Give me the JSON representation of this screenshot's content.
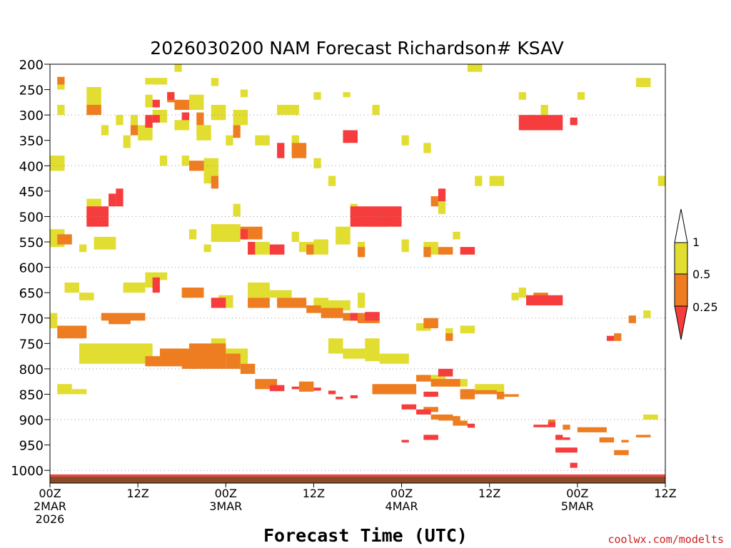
{
  "chart_data": {
    "type": "heatmap",
    "title": "2026030200 NAM Forecast Richardson# KSAV",
    "xlabel": "Forecast Time (UTC)",
    "ylabel": "",
    "x_unit": "forecast hour",
    "xlim": [
      0,
      84
    ],
    "ylim": [
      1025,
      200
    ],
    "y_ticks": [
      200,
      250,
      300,
      350,
      400,
      450,
      500,
      550,
      600,
      650,
      700,
      750,
      800,
      850,
      900,
      950,
      1000
    ],
    "x_ticks": [
      {
        "hour": 0,
        "lines": [
          "00Z",
          "2MAR",
          "2026"
        ]
      },
      {
        "hour": 12,
        "lines": [
          "12Z"
        ]
      },
      {
        "hour": 24,
        "lines": [
          "00Z",
          "3MAR"
        ]
      },
      {
        "hour": 36,
        "lines": [
          "12Z"
        ]
      },
      {
        "hour": 48,
        "lines": [
          "00Z",
          "4MAR"
        ]
      },
      {
        "hour": 60,
        "lines": [
          "12Z"
        ]
      },
      {
        "hour": 72,
        "lines": [
          "00Z",
          "5MAR"
        ]
      },
      {
        "hour": 84,
        "lines": [
          "12Z"
        ]
      }
    ],
    "grid_levels": [
      300,
      400,
      500,
      600,
      700,
      800,
      900,
      1000
    ],
    "legend": {
      "placement": "right",
      "labels": [
        "1",
        "0.5",
        "0.25"
      ],
      "bins": [
        {
          "range": "0.5-1",
          "color": "#e1dd31"
        },
        {
          "range": "0.25-0.5",
          "color": "#ee7d22"
        },
        {
          "range": "<0.25",
          "color": "#f63c3c"
        }
      ]
    },
    "surface_color": "#8b4a28",
    "bins": [
      {
        "bin": "0.5-1",
        "cells": [
          [
            17,
            18,
            200,
            215
          ],
          [
            1,
            2,
            225,
            250
          ],
          [
            5,
            7,
            245,
            300
          ],
          [
            13,
            16,
            227,
            240
          ],
          [
            22,
            23,
            227,
            243
          ],
          [
            26,
            27,
            250,
            265
          ],
          [
            36,
            37,
            255,
            270
          ],
          [
            40,
            41,
            255,
            265
          ],
          [
            57,
            59,
            200,
            215
          ],
          [
            80,
            82,
            227,
            245
          ],
          [
            64,
            65,
            255,
            270
          ],
          [
            72,
            73,
            255,
            270
          ],
          [
            1,
            2,
            280,
            300
          ],
          [
            9,
            10,
            300,
            320
          ],
          [
            11,
            12,
            300,
            320
          ],
          [
            13,
            14,
            260,
            285
          ],
          [
            14,
            16,
            290,
            315
          ],
          [
            19,
            21,
            260,
            290
          ],
          [
            22,
            24,
            280,
            310
          ],
          [
            25,
            27,
            290,
            320
          ],
          [
            31,
            34,
            280,
            300
          ],
          [
            44,
            45,
            280,
            300
          ],
          [
            67,
            68,
            280,
            300
          ],
          [
            65,
            66,
            300,
            320
          ],
          [
            7,
            8,
            320,
            340
          ],
          [
            10,
            11,
            340,
            365
          ],
          [
            12,
            14,
            320,
            350
          ],
          [
            17,
            19,
            310,
            330
          ],
          [
            20,
            22,
            320,
            350
          ],
          [
            24,
            25,
            340,
            360
          ],
          [
            28,
            30,
            340,
            360
          ],
          [
            33,
            34,
            340,
            360
          ],
          [
            48,
            49,
            340,
            360
          ],
          [
            51,
            52,
            355,
            375
          ],
          [
            0,
            2,
            380,
            410
          ],
          [
            15,
            16,
            380,
            400
          ],
          [
            18,
            19,
            380,
            400
          ],
          [
            21,
            23,
            385,
            435
          ],
          [
            36,
            37,
            385,
            405
          ],
          [
            38,
            39,
            420,
            440
          ],
          [
            60,
            62,
            420,
            440
          ],
          [
            58,
            59,
            420,
            440
          ],
          [
            83,
            84,
            420,
            440
          ],
          [
            5,
            7,
            465,
            500
          ],
          [
            25,
            26,
            475,
            500
          ],
          [
            41,
            42,
            475,
            500
          ],
          [
            53,
            54,
            470,
            495
          ],
          [
            0,
            2,
            525,
            560
          ],
          [
            4,
            5,
            555,
            570
          ],
          [
            6,
            9,
            540,
            565
          ],
          [
            19,
            20,
            525,
            545
          ],
          [
            22,
            26,
            515,
            550
          ],
          [
            21,
            22,
            555,
            570
          ],
          [
            27,
            30,
            550,
            575
          ],
          [
            33,
            34,
            530,
            550
          ],
          [
            34,
            36,
            550,
            570
          ],
          [
            36,
            38,
            545,
            575
          ],
          [
            39,
            41,
            520,
            555
          ],
          [
            42,
            43,
            550,
            575
          ],
          [
            48,
            49,
            545,
            570
          ],
          [
            55,
            56,
            530,
            545
          ],
          [
            51,
            53,
            550,
            575
          ],
          [
            2,
            4,
            630,
            650
          ],
          [
            4,
            6,
            650,
            665
          ],
          [
            10,
            13,
            630,
            650
          ],
          [
            13,
            15,
            610,
            640
          ],
          [
            15,
            16,
            610,
            625
          ],
          [
            18,
            20,
            640,
            660
          ],
          [
            23,
            25,
            655,
            680
          ],
          [
            27,
            30,
            630,
            660
          ],
          [
            30,
            33,
            645,
            660
          ],
          [
            36,
            38,
            660,
            690
          ],
          [
            38,
            41,
            665,
            685
          ],
          [
            42,
            43,
            650,
            680
          ],
          [
            63,
            64,
            650,
            665
          ],
          [
            64,
            65,
            640,
            660
          ],
          [
            0,
            1,
            690,
            720
          ],
          [
            4,
            8,
            750,
            790
          ],
          [
            8,
            14,
            750,
            790
          ],
          [
            17,
            18,
            760,
            790
          ],
          [
            22,
            24,
            740,
            790
          ],
          [
            24,
            27,
            760,
            790
          ],
          [
            38,
            40,
            740,
            770
          ],
          [
            40,
            43,
            760,
            780
          ],
          [
            43,
            45,
            740,
            785
          ],
          [
            45,
            49,
            770,
            790
          ],
          [
            50,
            52,
            710,
            725
          ],
          [
            54,
            55,
            720,
            735
          ],
          [
            56,
            58,
            715,
            730
          ],
          [
            81,
            82,
            685,
            700
          ],
          [
            1,
            3,
            830,
            850
          ],
          [
            3,
            5,
            840,
            850
          ],
          [
            50,
            54,
            812,
            825
          ],
          [
            54,
            57,
            820,
            835
          ],
          [
            58,
            62,
            830,
            845
          ],
          [
            81,
            83,
            890,
            900
          ]
        ]
      },
      {
        "bin": "0.25-0.5",
        "cells": [
          [
            1,
            2,
            225,
            240
          ],
          [
            5,
            7,
            280,
            300
          ],
          [
            16,
            17,
            255,
            275
          ],
          [
            18,
            19,
            295,
            310
          ],
          [
            17,
            19,
            270,
            290
          ],
          [
            20,
            21,
            295,
            320
          ],
          [
            25,
            26,
            320,
            345
          ],
          [
            33,
            35,
            355,
            385
          ],
          [
            11,
            12,
            320,
            340
          ],
          [
            19,
            21,
            390,
            410
          ],
          [
            22,
            23,
            420,
            445
          ],
          [
            52,
            53,
            460,
            480
          ],
          [
            1,
            3,
            535,
            555
          ],
          [
            26,
            29,
            520,
            545
          ],
          [
            43,
            46,
            490,
            520
          ],
          [
            35,
            36,
            555,
            575
          ],
          [
            42,
            43,
            560,
            580
          ],
          [
            51,
            52,
            560,
            580
          ],
          [
            53,
            55,
            560,
            575
          ],
          [
            18,
            21,
            640,
            660
          ],
          [
            27,
            30,
            660,
            680
          ],
          [
            31,
            35,
            660,
            680
          ],
          [
            35,
            37,
            675,
            690
          ],
          [
            37,
            40,
            680,
            700
          ],
          [
            40,
            42,
            690,
            705
          ],
          [
            42,
            45,
            690,
            710
          ],
          [
            1,
            5,
            715,
            740
          ],
          [
            7,
            13,
            690,
            705
          ],
          [
            8,
            11,
            700,
            712
          ],
          [
            13,
            18,
            775,
            795
          ],
          [
            15,
            19,
            760,
            790
          ],
          [
            19,
            24,
            750,
            800
          ],
          [
            24,
            26,
            770,
            800
          ],
          [
            26,
            28,
            790,
            810
          ],
          [
            28,
            31,
            820,
            840
          ],
          [
            34,
            36,
            825,
            845
          ],
          [
            44,
            50,
            830,
            850
          ],
          [
            50,
            52,
            812,
            825
          ],
          [
            52,
            56,
            820,
            835
          ],
          [
            56,
            58,
            840,
            860
          ],
          [
            58,
            61,
            842,
            850
          ],
          [
            61,
            62,
            845,
            860
          ],
          [
            62,
            64,
            850,
            855
          ],
          [
            51,
            53,
            875,
            885
          ],
          [
            52,
            55,
            890,
            900
          ],
          [
            53,
            56,
            893,
            902
          ],
          [
            55,
            57,
            902,
            912
          ],
          [
            18,
            20,
            780,
            800
          ],
          [
            51,
            53,
            700,
            720
          ],
          [
            54,
            55,
            730,
            745
          ],
          [
            66,
            68,
            650,
            670
          ],
          [
            77,
            78,
            730,
            745
          ],
          [
            79,
            80,
            695,
            710
          ],
          [
            80,
            82,
            930,
            935
          ],
          [
            77,
            79,
            960,
            970
          ],
          [
            78,
            79,
            940,
            945
          ],
          [
            75,
            77,
            935,
            945
          ],
          [
            72,
            76,
            915,
            925
          ],
          [
            70,
            71,
            910,
            920
          ],
          [
            68,
            69,
            900,
            910
          ]
        ]
      },
      {
        "bin": "<0.25",
        "cells": [
          [
            13,
            14,
            300,
            325
          ],
          [
            14,
            15,
            300,
            315
          ],
          [
            14,
            15,
            270,
            285
          ],
          [
            16,
            17,
            255,
            270
          ],
          [
            18,
            19,
            295,
            310
          ],
          [
            40,
            42,
            330,
            355
          ],
          [
            31,
            32,
            355,
            385
          ],
          [
            64,
            70,
            300,
            330
          ],
          [
            71,
            72,
            305,
            320
          ],
          [
            53,
            54,
            445,
            470
          ],
          [
            5,
            8,
            480,
            520
          ],
          [
            8,
            9,
            455,
            480
          ],
          [
            9,
            10,
            445,
            480
          ],
          [
            41,
            48,
            480,
            520
          ],
          [
            26,
            27,
            525,
            545
          ],
          [
            27,
            28,
            550,
            575
          ],
          [
            30,
            32,
            555,
            575
          ],
          [
            56,
            58,
            560,
            575
          ],
          [
            14,
            15,
            620,
            650
          ],
          [
            22,
            24,
            660,
            680
          ],
          [
            41,
            42,
            690,
            705
          ],
          [
            43,
            45,
            688,
            705
          ],
          [
            65,
            70,
            655,
            675
          ],
          [
            76,
            77,
            735,
            745
          ],
          [
            53,
            55,
            800,
            815
          ],
          [
            51,
            53,
            845,
            855
          ],
          [
            39,
            40,
            855,
            860
          ],
          [
            41,
            42,
            852,
            858
          ],
          [
            30,
            32,
            832,
            844
          ],
          [
            33,
            34,
            835,
            840
          ],
          [
            36,
            37,
            837,
            843
          ],
          [
            38,
            39,
            843,
            850
          ],
          [
            48,
            50,
            870,
            880
          ],
          [
            50,
            52,
            880,
            890
          ],
          [
            51,
            53,
            930,
            940
          ],
          [
            48,
            49,
            940,
            945
          ],
          [
            57,
            58,
            908,
            916
          ],
          [
            66,
            68,
            910,
            915
          ],
          [
            68,
            69,
            905,
            915
          ],
          [
            69,
            70,
            930,
            940
          ],
          [
            70,
            71,
            935,
            940
          ],
          [
            69,
            72,
            955,
            965
          ],
          [
            71,
            72,
            985,
            995
          ]
        ]
      }
    ]
  },
  "credit": "coolwx.com/modelts"
}
